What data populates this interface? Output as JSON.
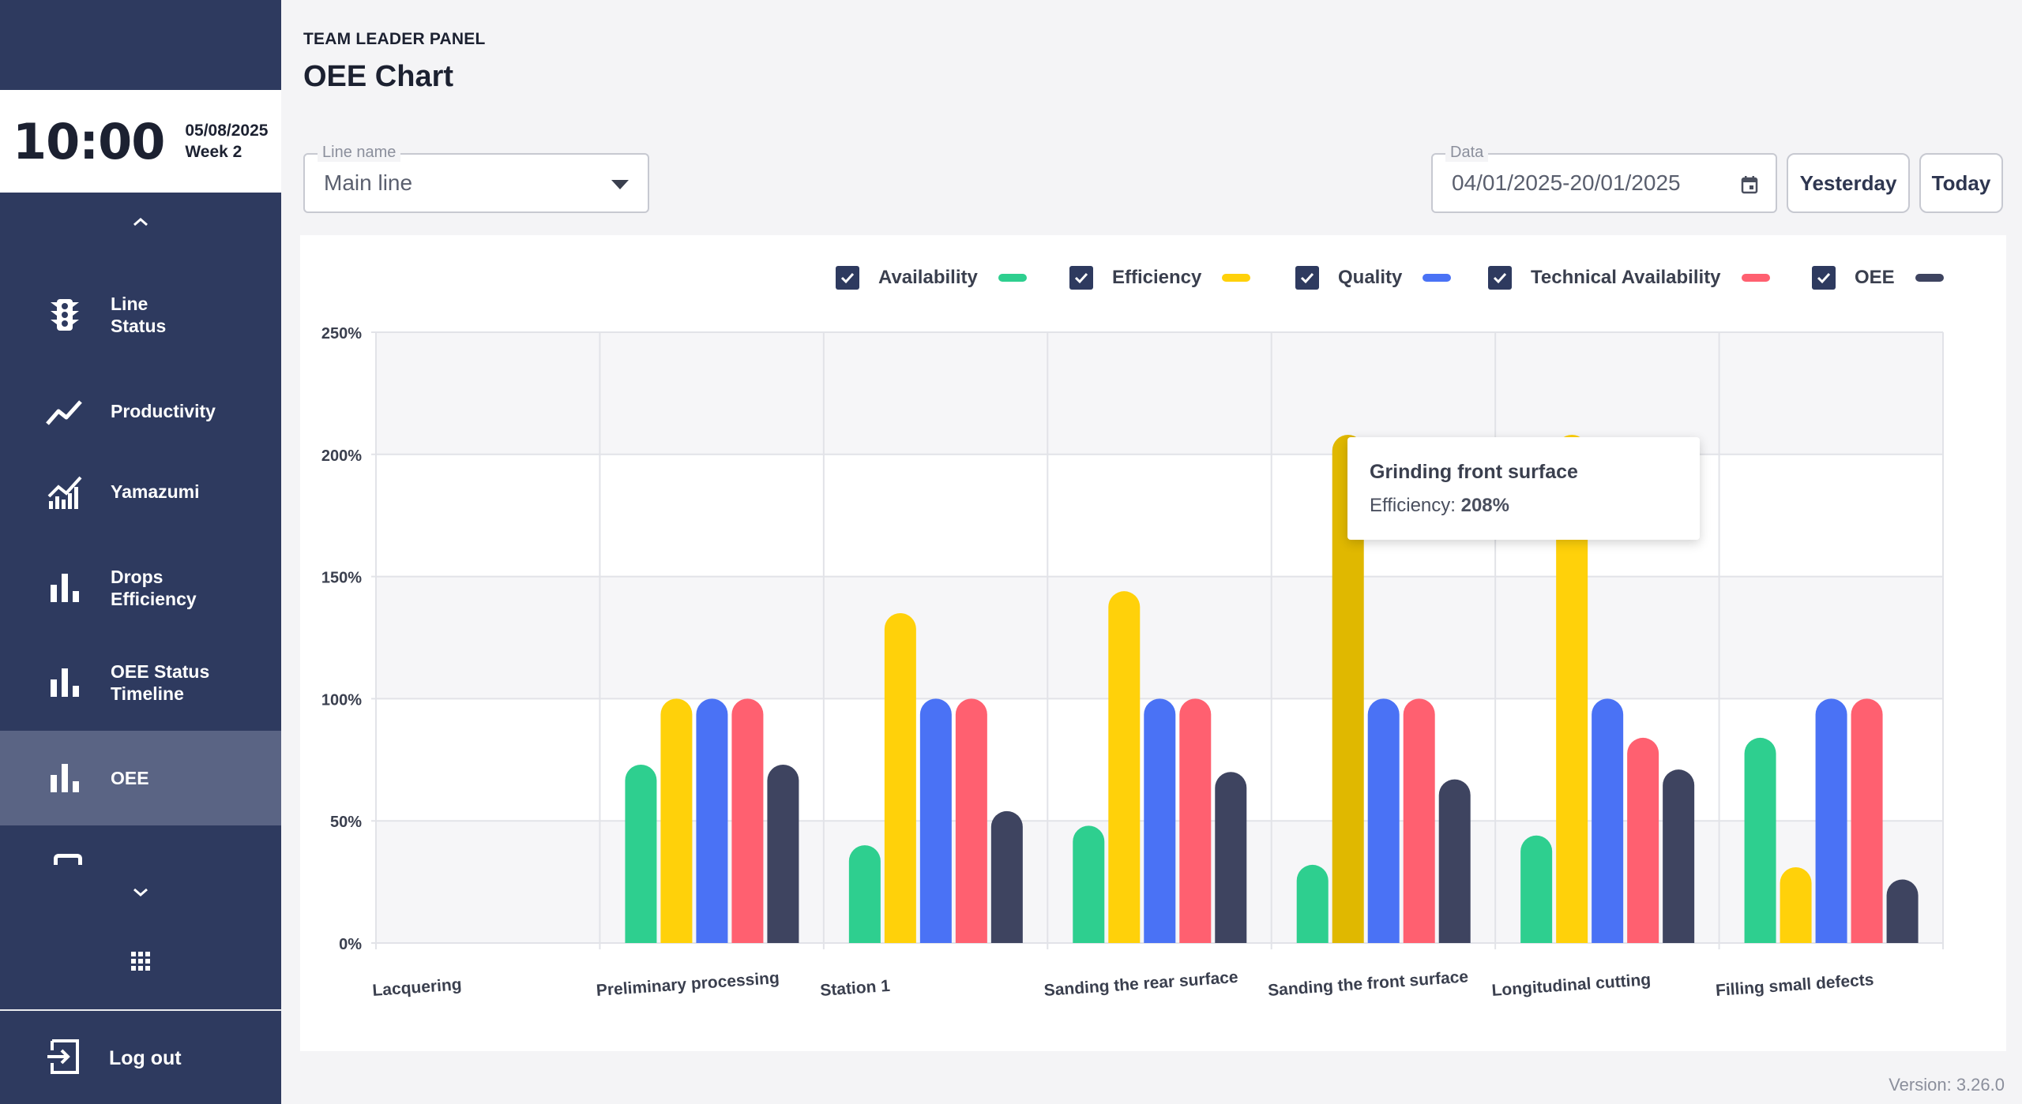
{
  "sidebar": {
    "time": "10:00",
    "date": "05/08/2025",
    "week": "Week 2",
    "items": [
      {
        "label": "Line\nStatus",
        "icon": "traffic-light-icon"
      },
      {
        "label": "Productivity",
        "icon": "trend-line-icon"
      },
      {
        "label": "Yamazumi",
        "icon": "stacked-chart-icon"
      },
      {
        "label": "Drops\nEfficiency",
        "icon": "bar-chart-icon"
      },
      {
        "label": "OEE Status\nTimeline",
        "icon": "bar-chart-icon"
      },
      {
        "label": "OEE",
        "icon": "bar-chart-icon",
        "active": true
      }
    ],
    "logout_label": "Log out"
  },
  "header": {
    "panel_label": "TEAM LEADER PANEL",
    "title": "OEE Chart"
  },
  "filters": {
    "line_label": "Line name",
    "line_value": "Main line",
    "date_label": "Data",
    "date_value": "04/01/2025-20/01/2025",
    "yesterday_label": "Yesterday",
    "today_label": "Today"
  },
  "legend": [
    {
      "label": "Availability",
      "color": "#2ecf8f",
      "checked": true
    },
    {
      "label": "Efficiency",
      "color": "#ffd10a",
      "checked": true
    },
    {
      "label": "Quality",
      "color": "#4a72f5",
      "checked": true
    },
    {
      "label": "Technical Availability",
      "color": "#ff6070",
      "checked": true
    },
    {
      "label": "OEE",
      "color": "#3e4460",
      "checked": true
    }
  ],
  "tooltip": {
    "title": "Grinding front surface",
    "series_label": "Efficiency:",
    "value": "208%"
  },
  "chart_data": {
    "type": "bar",
    "ylim": [
      0,
      250
    ],
    "yticks": [
      "0%",
      "50%",
      "100%",
      "150%",
      "200%",
      "250%"
    ],
    "categories": [
      "Lacquering",
      "Preliminary processing",
      "Station 1",
      "Sanding the rear surface",
      "Sanding the front surface",
      "Longitudinal cutting",
      "Filling small defects"
    ],
    "series": [
      {
        "name": "Availability",
        "values": [
          0,
          73,
          40,
          48,
          32,
          44,
          84
        ]
      },
      {
        "name": "Efficiency",
        "values": [
          0,
          100,
          135,
          144,
          208,
          208,
          31
        ]
      },
      {
        "name": "Quality",
        "values": [
          0,
          100,
          100,
          100,
          100,
          100,
          100
        ]
      },
      {
        "name": "Technical Availability",
        "values": [
          0,
          100,
          100,
          100,
          100,
          84,
          100
        ]
      },
      {
        "name": "OEE",
        "values": [
          0,
          73,
          54,
          70,
          67,
          71,
          26
        ]
      }
    ],
    "highlighted": {
      "category_index": 4,
      "series": "Efficiency"
    }
  },
  "footer": {
    "version": "Version: 3.26.0"
  }
}
